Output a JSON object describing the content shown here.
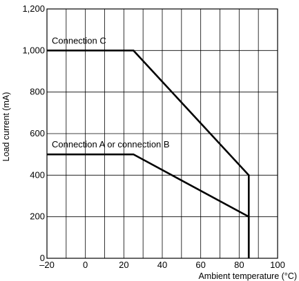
{
  "chart_data": {
    "type": "line",
    "xlabel": "Ambient temperature (°C)",
    "ylabel": "Load current (mA)",
    "xlim": [
      -20,
      100
    ],
    "ylim": [
      0,
      1200
    ],
    "xticks": [
      -20,
      0,
      20,
      40,
      60,
      80,
      100
    ],
    "yticks": [
      0,
      200,
      400,
      600,
      800,
      1000,
      1200
    ],
    "xtick_labels": [
      "–20",
      "0",
      "20",
      "40",
      "60",
      "80",
      "100"
    ],
    "ytick_labels": [
      "0",
      "200",
      "400",
      "600",
      "800",
      "1,000",
      "1,200"
    ],
    "x_minor_grid_step": 10,
    "grid": true,
    "series": [
      {
        "name": "Connection C",
        "x": [
          -20,
          25,
          85,
          85
        ],
        "y": [
          1000,
          1000,
          400,
          0
        ]
      },
      {
        "name": "Connection A or connection B",
        "x": [
          -20,
          25,
          85,
          85
        ],
        "y": [
          500,
          500,
          200,
          0
        ]
      }
    ]
  }
}
